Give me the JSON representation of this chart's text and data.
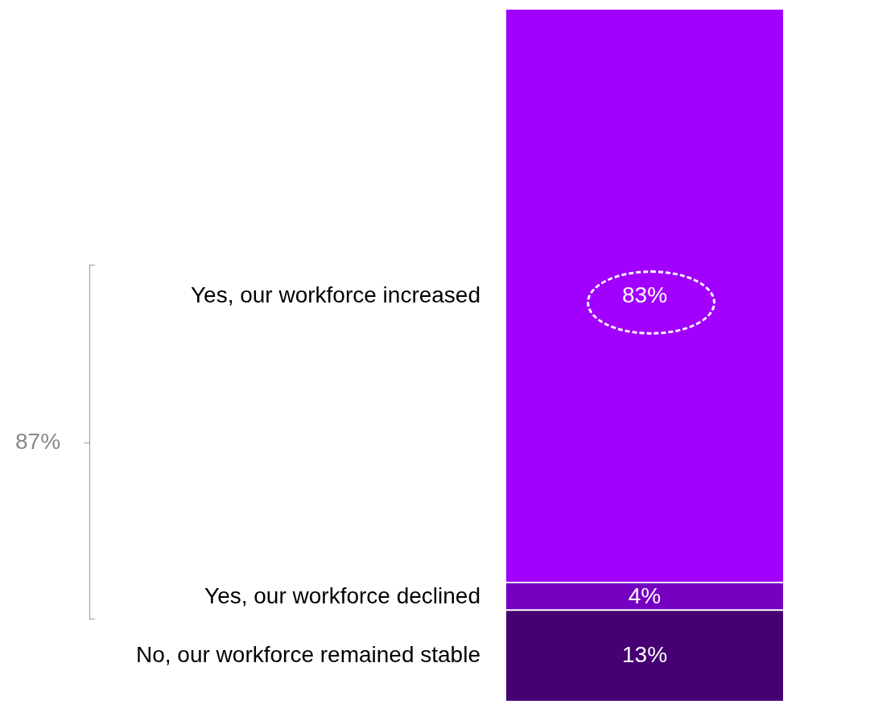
{
  "chart_data": {
    "type": "bar",
    "stacked": true,
    "categories": [
      null
    ],
    "series": [
      {
        "name": "No, our workforce remained stable",
        "color": "#460073",
        "values": [
          13
        ],
        "value_labels": [
          "13%"
        ]
      },
      {
        "name": "Yes, our workforce declined",
        "color": "#7500c0",
        "values": [
          4
        ],
        "value_labels": [
          "4%"
        ]
      },
      {
        "name": "Yes, our workforce increased",
        "color": "#a100ff",
        "values": [
          83
        ],
        "value_labels": [
          "83%"
        ]
      }
    ],
    "annotations": [
      "87%"
    ]
  }
}
